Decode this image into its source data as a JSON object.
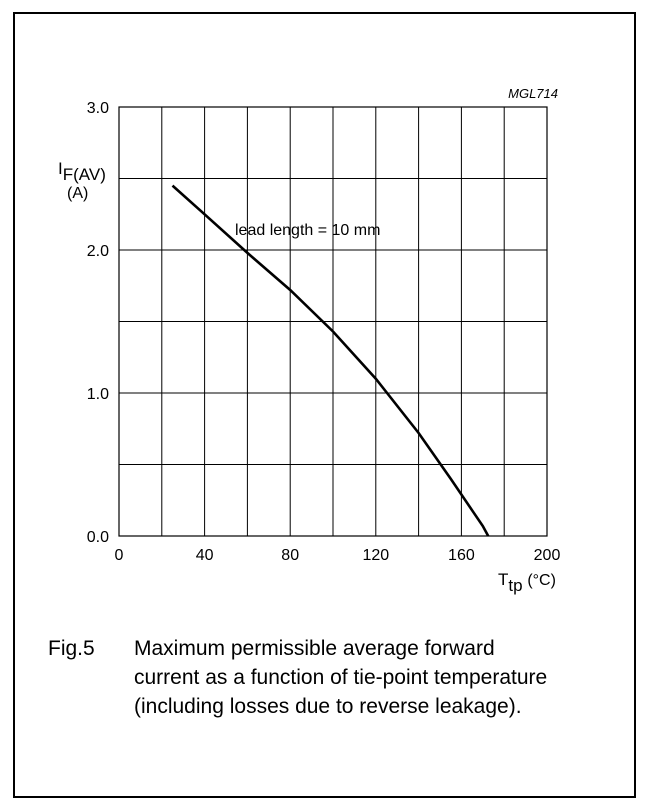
{
  "chart_data": {
    "type": "line",
    "code": "MGL714",
    "ylabel_main": "I",
    "ylabel_sub": "F(AV)",
    "yunit": "(A)",
    "xlabel_main": "T",
    "xlabel_sub": "tp",
    "xunit": "(°C)",
    "xlim": [
      0,
      200
    ],
    "ylim": [
      0,
      3.0
    ],
    "xticks": [
      0,
      40,
      80,
      120,
      160,
      200
    ],
    "xtick_labels": [
      "0",
      "40",
      "80",
      "120",
      "160",
      "200"
    ],
    "yticks": [
      0,
      1.0,
      2.0,
      3.0
    ],
    "ytick_labels": [
      "0.0",
      "1.0",
      "2.0",
      "3.0"
    ],
    "grid": true,
    "annotation": "lead length = 10 mm",
    "series": [
      {
        "x": [
          25,
          40,
          60,
          80,
          100,
          120,
          140,
          155,
          165,
          170,
          172.5
        ],
        "y": [
          2.45,
          2.25,
          1.98,
          1.72,
          1.43,
          1.1,
          0.72,
          0.4,
          0.18,
          0.07,
          0.0
        ]
      }
    ]
  },
  "caption": {
    "fig_no": "Fig.5",
    "text": "Maximum permissible average forward current as a function of tie-point temperature (including losses due to reverse leakage)."
  }
}
